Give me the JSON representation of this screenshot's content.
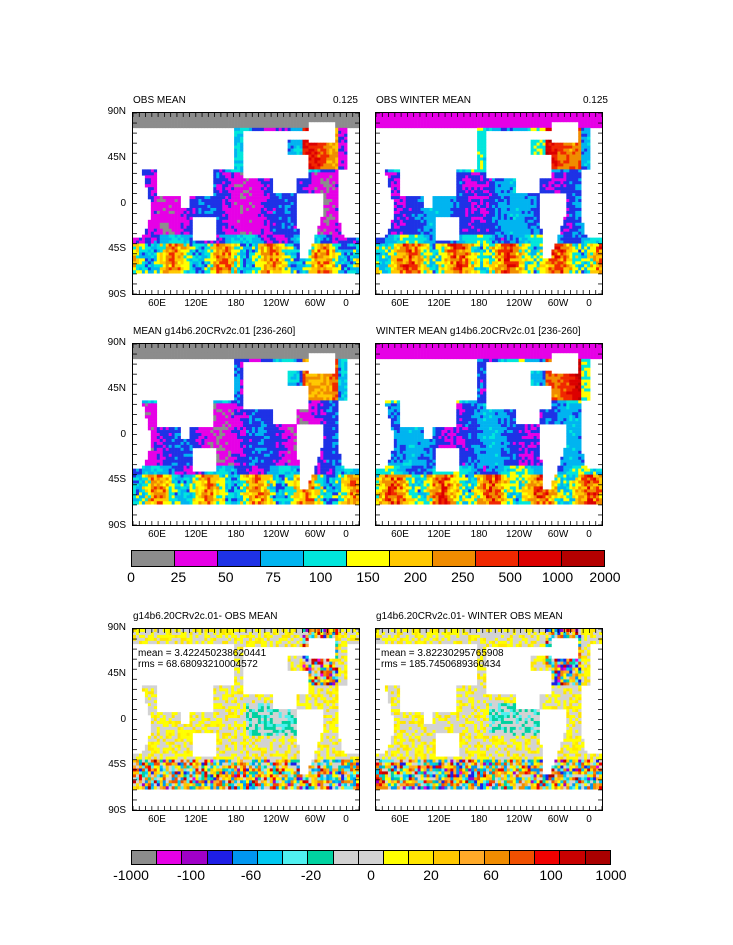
{
  "panels": [
    {
      "id": "p1",
      "title": "OBS MEAN",
      "right": "0.125",
      "scheme": "abs",
      "seed": 1
    },
    {
      "id": "p2",
      "title": "OBS WINTER MEAN",
      "right": "0.125",
      "scheme": "abs",
      "seed": 2
    },
    {
      "id": "p3",
      "title": "MEAN g14b6.20CRv2c.01 [236-260]",
      "right": "",
      "scheme": "abs",
      "seed": 3
    },
    {
      "id": "p4",
      "title": "WINTER MEAN g14b6.20CRv2c.01 [236-260]",
      "right": "",
      "scheme": "abs",
      "seed": 4
    },
    {
      "id": "p5",
      "title": "g14b6.20CRv2c.01- OBS MEAN",
      "right": "",
      "scheme": "diff",
      "seed": 5,
      "mean": "mean = 3.422450238620441",
      "rms": "rms = 68.68093210004572"
    },
    {
      "id": "p6",
      "title": "g14b6.20CRv2c.01- WINTER OBS MEAN",
      "right": "",
      "scheme": "diff",
      "seed": 6,
      "mean": "mean = 3.82230295765908",
      "rms": "rms = 185.7450689360434"
    }
  ],
  "lat_labels": [
    "90N",
    "45N",
    "0",
    "45S",
    "90S"
  ],
  "lon_labels": [
    "60E",
    "120E",
    "180",
    "120W",
    "60W",
    "0"
  ],
  "colorbar_abs": {
    "colors": [
      "#8c8c8c",
      "#e600e6",
      "#1e32e6",
      "#00b4f0",
      "#00e6dc",
      "#ffff00",
      "#ffc800",
      "#f08c00",
      "#f02800",
      "#dc0000",
      "#b40000"
    ],
    "labels": [
      "0",
      "25",
      "50",
      "75",
      "100",
      "150",
      "200",
      "250",
      "500",
      "1000",
      "2000"
    ]
  },
  "colorbar_diff": {
    "colors": [
      "#8c8c8c",
      "#e600e6",
      "#a000c8",
      "#1e1ee6",
      "#0096f0",
      "#00c8f0",
      "#50f0f0",
      "#00d2a0",
      "#d2d2d2",
      "#d2d2d2",
      "#ffff00",
      "#ffe600",
      "#ffc800",
      "#ffaa28",
      "#f08c00",
      "#f05000",
      "#f00000",
      "#c80000",
      "#aa0000"
    ],
    "labels": [
      "-1000",
      "-100",
      "-60",
      "-20",
      "0",
      "20",
      "60",
      "100",
      "1000"
    ]
  }
}
